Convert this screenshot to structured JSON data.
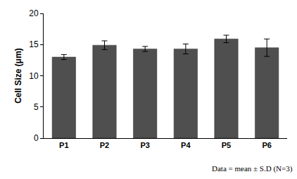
{
  "chart_data": {
    "type": "bar",
    "categories": [
      "P1",
      "P2",
      "P3",
      "P4",
      "P5",
      "P6"
    ],
    "values": [
      13.0,
      14.9,
      14.3,
      14.3,
      15.9,
      14.5
    ],
    "errors": [
      0.4,
      0.7,
      0.4,
      0.8,
      0.6,
      1.4
    ],
    "color": "#4f4f4f",
    "y_label": "Cell Size (μm)",
    "annotation": "Data = mean ± S.D (N=3)",
    "ylim": [
      0,
      20
    ],
    "yticks": [
      0,
      5,
      10,
      15,
      20
    ],
    "grid": false
  }
}
